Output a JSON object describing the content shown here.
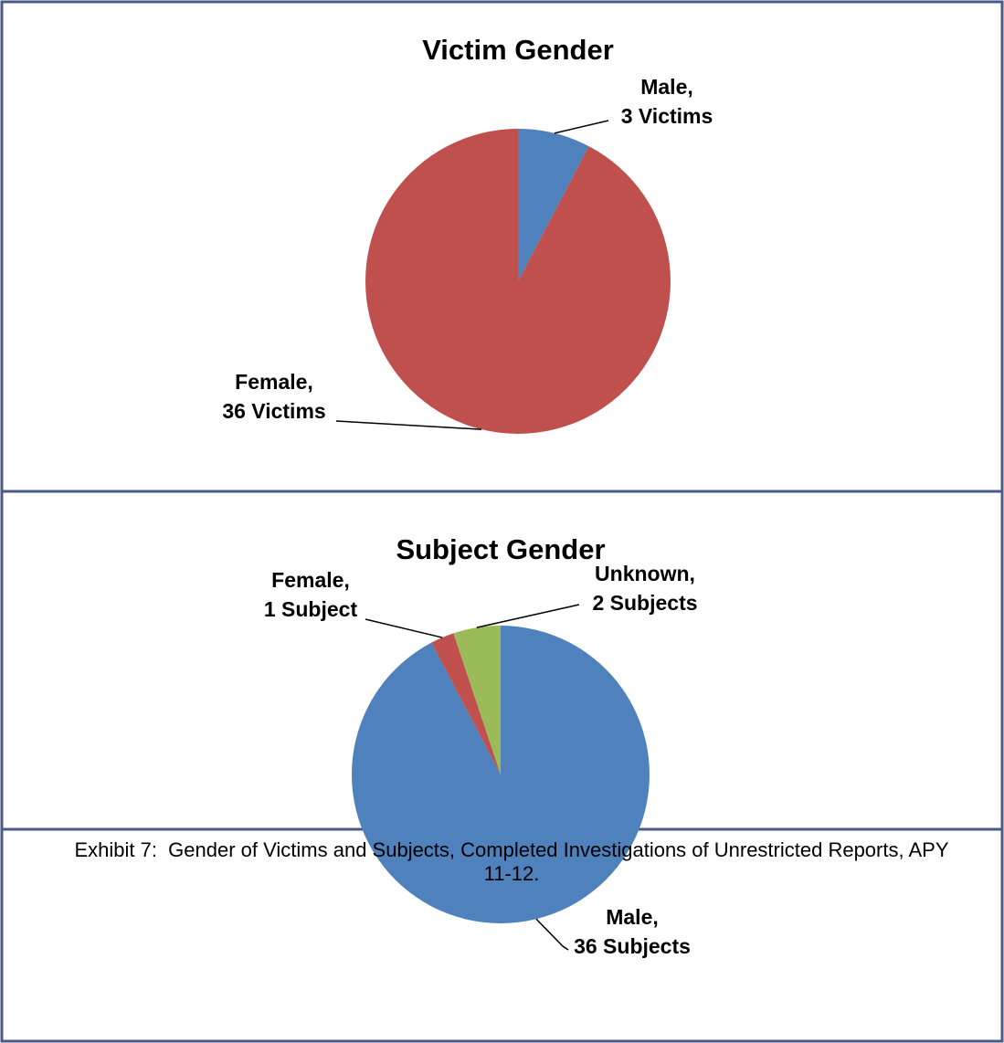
{
  "chart_data": [
    {
      "type": "pie",
      "title": "Victim Gender",
      "categories": [
        "Male,",
        "Female,"
      ],
      "values": [
        3,
        36
      ],
      "value_labels": [
        "3 Victims",
        "36 Victims"
      ],
      "colors": [
        "#4f81bd",
        "#c0504d"
      ]
    },
    {
      "type": "pie",
      "title": "Subject Gender",
      "categories": [
        "Male,",
        "Female,",
        "Unknown,"
      ],
      "values": [
        36,
        1,
        2
      ],
      "value_labels": [
        "36 Subjects",
        "1 Subject",
        "2 Subjects"
      ],
      "colors": [
        "#4f81bd",
        "#c0504d",
        "#9bbb59"
      ]
    }
  ],
  "caption": "Exhibit 7:  Gender of Victims and Subjects, Completed Investigations of Unrestricted Reports, APY 11-12."
}
